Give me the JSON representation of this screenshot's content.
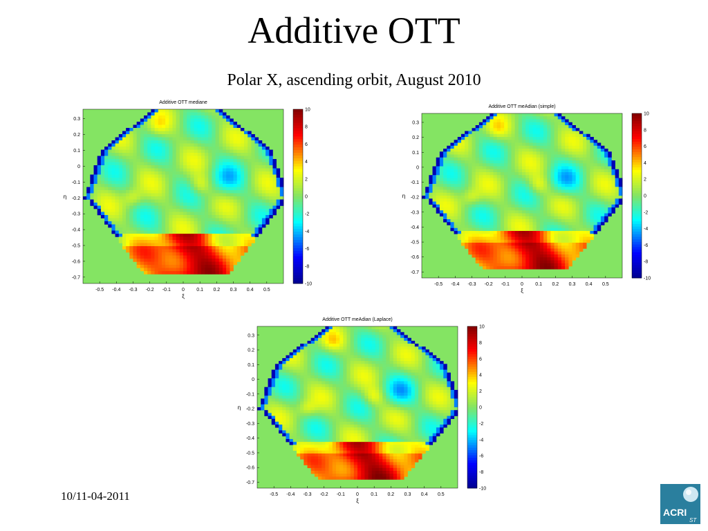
{
  "slide": {
    "title": "Additive OTT",
    "subtitle": "Polar X, ascending orbit, August 2010",
    "footer_date": "10/11-04-2011",
    "logo_text": "ACRI",
    "logo_sub": "ST"
  },
  "colors": {
    "background": "#84e463",
    "colormap": [
      "#00008f",
      "#0000ff",
      "#00ffff",
      "#84e463",
      "#ffff00",
      "#ff0000",
      "#800000"
    ]
  },
  "chart_data": [
    {
      "type": "heatmap",
      "title": "Additive OTT mediane",
      "xlabel": "ξ",
      "ylabel": "η",
      "xticks": [
        "-0.5",
        "-0.4",
        "-0.3",
        "-0.2",
        "-0.1",
        "0",
        "0.1",
        "0.2",
        "0.3",
        "0.4",
        "0.5"
      ],
      "yticks": [
        "0.3",
        "0.2",
        "0.1",
        "0",
        "-0.1",
        "-0.2",
        "-0.3",
        "-0.4",
        "-0.5",
        "-0.6",
        "-0.7"
      ],
      "xlim": [
        -0.6,
        0.6
      ],
      "ylim": [
        -0.74,
        0.36
      ],
      "colorbar": {
        "ticks": [
          "10",
          "8",
          "6",
          "4",
          "2",
          "0",
          "-2",
          "-4",
          "-6",
          "-8",
          "-10"
        ],
        "range": [
          -10,
          10
        ]
      },
      "variant": 0
    },
    {
      "type": "heatmap",
      "title": "Additive OTT meAdian (simple)",
      "xlabel": "ξ",
      "ylabel": "η",
      "xticks": [
        "-0.5",
        "-0.4",
        "-0.3",
        "-0.2",
        "-0.1",
        "0",
        "0.1",
        "0.2",
        "0.3",
        "0.4",
        "0.5"
      ],
      "yticks": [
        "0.3",
        "0.2",
        "0.1",
        "0",
        "-0.1",
        "-0.2",
        "-0.3",
        "-0.4",
        "-0.5",
        "-0.6",
        "-0.7"
      ],
      "xlim": [
        -0.6,
        0.6
      ],
      "ylim": [
        -0.74,
        0.36
      ],
      "colorbar": {
        "ticks": [
          "10",
          "8",
          "6",
          "4",
          "2",
          "0",
          "-2",
          "-4",
          "-6",
          "-8",
          "-10"
        ],
        "range": [
          -10,
          10
        ]
      },
      "variant": 1
    },
    {
      "type": "heatmap",
      "title": "Additive OTT meAdian (Laplace)",
      "xlabel": "ξ",
      "ylabel": "η",
      "xticks": [
        "-0.5",
        "-0.4",
        "-0.3",
        "-0.2",
        "-0.1",
        "0",
        "0.1",
        "0.2",
        "0.3",
        "0.4",
        "0.5"
      ],
      "yticks": [
        "0.3",
        "0.2",
        "0.1",
        "0",
        "-0.1",
        "-0.2",
        "-0.3",
        "-0.4",
        "-0.5",
        "-0.6",
        "-0.7"
      ],
      "xlim": [
        -0.6,
        0.6
      ],
      "ylim": [
        -0.74,
        0.36
      ],
      "colorbar": {
        "ticks": [
          "10",
          "8",
          "6",
          "4",
          "2",
          "0",
          "-2",
          "-4",
          "-6",
          "-8",
          "-10"
        ],
        "range": [
          -10,
          10
        ]
      },
      "variant": 2
    }
  ]
}
